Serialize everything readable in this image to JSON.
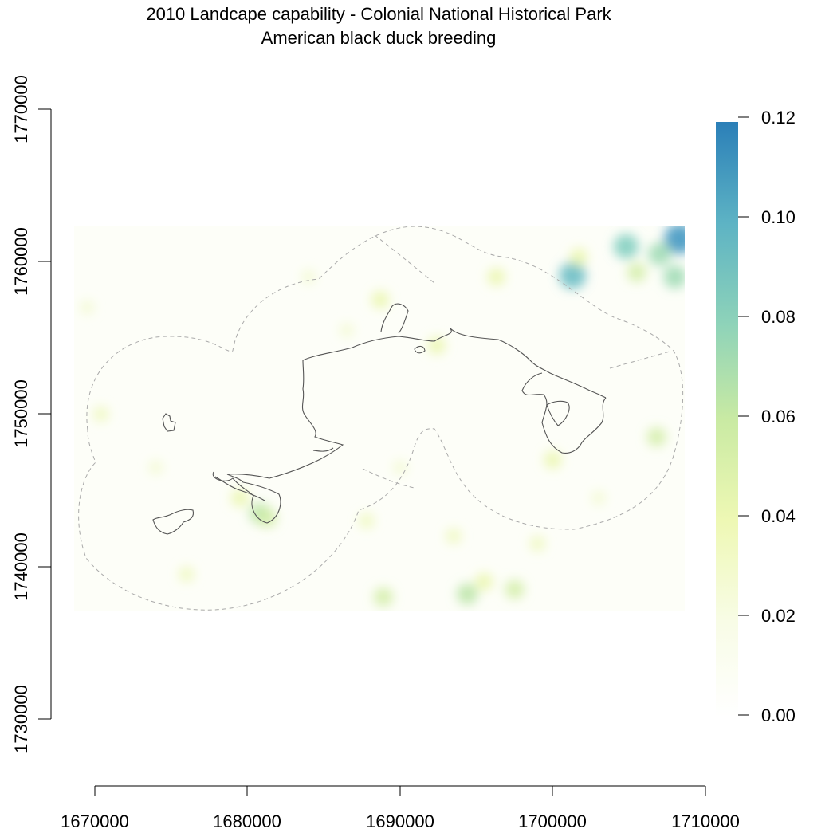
{
  "title": "2010 Landcape capability - Colonial National Historical Park",
  "subtitle": "American black duck breeding",
  "colors": {
    "boundary": "#555555",
    "buffer": "#aaaaaa",
    "ramp": [
      "#ffffff",
      "#f1f9ce",
      "#e9f6a8",
      "#b9e4a4",
      "#7ccdbd",
      "#4aa6c6",
      "#2b7fb8"
    ]
  },
  "chart_data": {
    "type": "heatmap",
    "title": "2010 Landcape capability - Colonial National Historical Park",
    "subtitle": "American black duck breeding",
    "x_ticks": [
      "1670000",
      "1680000",
      "1690000",
      "1700000",
      "1710000"
    ],
    "y_ticks": [
      "1770000",
      "1760000",
      "1750000",
      "1740000",
      "1730000"
    ],
    "xlim": [
      1670000,
      1710000
    ],
    "ylim": [
      1730000,
      1770000
    ],
    "raster_extent": {
      "x": [
        1668800,
        1708800
      ],
      "y": [
        1737200,
        1762200
      ]
    },
    "legend": {
      "position": "right",
      "range": [
        0,
        0.12
      ],
      "ticks": [
        "0.00",
        "0.02",
        "0.04",
        "0.06",
        "0.08",
        "0.10",
        "0.12"
      ]
    },
    "hotspots": [
      {
        "x": 1708300,
        "y": 1761500,
        "value": 0.11
      },
      {
        "x": 1707000,
        "y": 1760500,
        "value": 0.07
      },
      {
        "x": 1704800,
        "y": 1761000,
        "value": 0.08
      },
      {
        "x": 1701300,
        "y": 1759100,
        "value": 0.09
      },
      {
        "x": 1708000,
        "y": 1759000,
        "value": 0.07
      },
      {
        "x": 1705500,
        "y": 1759300,
        "value": 0.05
      },
      {
        "x": 1701700,
        "y": 1760300,
        "value": 0.04
      },
      {
        "x": 1680800,
        "y": 1743500,
        "value": 0.06
      },
      {
        "x": 1681300,
        "y": 1743200,
        "value": 0.05
      },
      {
        "x": 1679500,
        "y": 1744500,
        "value": 0.04
      },
      {
        "x": 1706800,
        "y": 1748500,
        "value": 0.05
      },
      {
        "x": 1696300,
        "y": 1759000,
        "value": 0.04
      },
      {
        "x": 1692400,
        "y": 1754500,
        "value": 0.04
      },
      {
        "x": 1688900,
        "y": 1738000,
        "value": 0.05
      },
      {
        "x": 1694400,
        "y": 1738200,
        "value": 0.06
      },
      {
        "x": 1697500,
        "y": 1738500,
        "value": 0.05
      },
      {
        "x": 1695500,
        "y": 1739000,
        "value": 0.04
      },
      {
        "x": 1693500,
        "y": 1742000,
        "value": 0.03
      },
      {
        "x": 1687800,
        "y": 1743000,
        "value": 0.03
      },
      {
        "x": 1700000,
        "y": 1747000,
        "value": 0.04
      },
      {
        "x": 1670400,
        "y": 1750000,
        "value": 0.03
      },
      {
        "x": 1688700,
        "y": 1757500,
        "value": 0.04
      },
      {
        "x": 1686500,
        "y": 1755500,
        "value": 0.02
      },
      {
        "x": 1676000,
        "y": 1739500,
        "value": 0.03
      },
      {
        "x": 1699000,
        "y": 1741500,
        "value": 0.03
      },
      {
        "x": 1703000,
        "y": 1744500,
        "value": 0.02
      },
      {
        "x": 1690000,
        "y": 1746500,
        "value": 0.02
      },
      {
        "x": 1684000,
        "y": 1759000,
        "value": 0.02
      },
      {
        "x": 1674000,
        "y": 1746500,
        "value": 0.02
      },
      {
        "x": 1669500,
        "y": 1757000,
        "value": 0.02
      }
    ]
  }
}
